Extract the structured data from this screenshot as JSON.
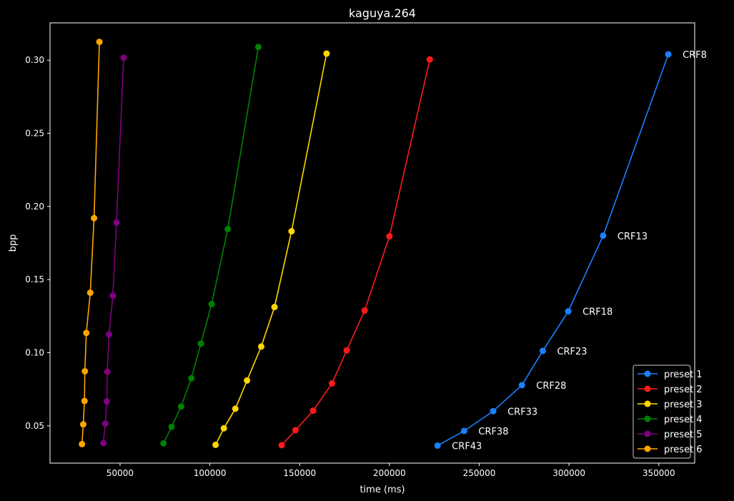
{
  "chart_data": {
    "type": "line",
    "title": "kaguya.264",
    "xlabel": "time (ms)",
    "ylabel": "bpp",
    "xlim": [
      11000,
      370000
    ],
    "ylim": [
      0.0245,
      0.3255
    ],
    "xticks": [
      50000,
      100000,
      150000,
      200000,
      250000,
      300000,
      350000
    ],
    "xtick_labels": [
      "50000",
      "100000",
      "150000",
      "200000",
      "250000",
      "300000",
      "350000"
    ],
    "yticks": [
      0.05,
      0.1,
      0.15,
      0.2,
      0.25,
      0.3
    ],
    "ytick_labels": [
      "0.05",
      "0.10",
      "0.15",
      "0.20",
      "0.25",
      "0.30"
    ],
    "grid": false,
    "legend_position": "lower-right",
    "background": "#000000",
    "series": [
      {
        "name": "preset 1",
        "color": "#1a80ff",
        "x": [
          226800,
          241600,
          257800,
          273800,
          285400,
          299600,
          319000,
          355300
        ],
        "y": [
          0.0365,
          0.0465,
          0.06,
          0.0778,
          0.1012,
          0.1283,
          0.18,
          0.304
        ]
      },
      {
        "name": "preset 2",
        "color": "#ff1a1a",
        "x": [
          140000,
          147700,
          157500,
          168000,
          176200,
          186200,
          200000,
          222500
        ],
        "y": [
          0.0368,
          0.047,
          0.0603,
          0.079,
          0.1016,
          0.1288,
          0.1796,
          0.3005
        ]
      },
      {
        "name": "preset 3",
        "color": "#ffd700",
        "x": [
          103200,
          107800,
          114200,
          120700,
          128600,
          136000,
          145500,
          165000
        ],
        "y": [
          0.037,
          0.0483,
          0.0617,
          0.081,
          0.1042,
          0.1312,
          0.183,
          0.3045
        ]
      },
      {
        "name": "preset 4",
        "color": "#008000",
        "x": [
          74200,
          78700,
          84000,
          89700,
          95000,
          101000,
          110000,
          127000
        ],
        "y": [
          0.038,
          0.0493,
          0.0632,
          0.0825,
          0.1062,
          0.1332,
          0.1845,
          0.309
        ]
      },
      {
        "name": "preset 5",
        "color": "#800080",
        "x": [
          40700,
          41800,
          42600,
          42900,
          43800,
          46000,
          48000,
          52000
        ],
        "y": [
          0.0382,
          0.0515,
          0.0667,
          0.087,
          0.1125,
          0.139,
          0.189,
          0.3017
        ]
      },
      {
        "name": "preset 6",
        "color": "#ffa500",
        "x": [
          28800,
          29500,
          30200,
          30400,
          31200,
          33400,
          35500,
          38500
        ],
        "y": [
          0.0375,
          0.051,
          0.067,
          0.0873,
          0.1135,
          0.141,
          0.192,
          0.3125
        ]
      }
    ],
    "annotations": [
      {
        "text": "CRF43",
        "x": 226800,
        "y": 0.0365
      },
      {
        "text": "CRF38",
        "x": 241600,
        "y": 0.0465
      },
      {
        "text": "CRF33",
        "x": 257800,
        "y": 0.06
      },
      {
        "text": "CRF28",
        "x": 273800,
        "y": 0.0778
      },
      {
        "text": "CRF23",
        "x": 285400,
        "y": 0.1012
      },
      {
        "text": "CRF18",
        "x": 299600,
        "y": 0.1283
      },
      {
        "text": "CRF13",
        "x": 319000,
        "y": 0.18
      },
      {
        "text": "CRF8",
        "x": 355300,
        "y": 0.304
      }
    ]
  }
}
